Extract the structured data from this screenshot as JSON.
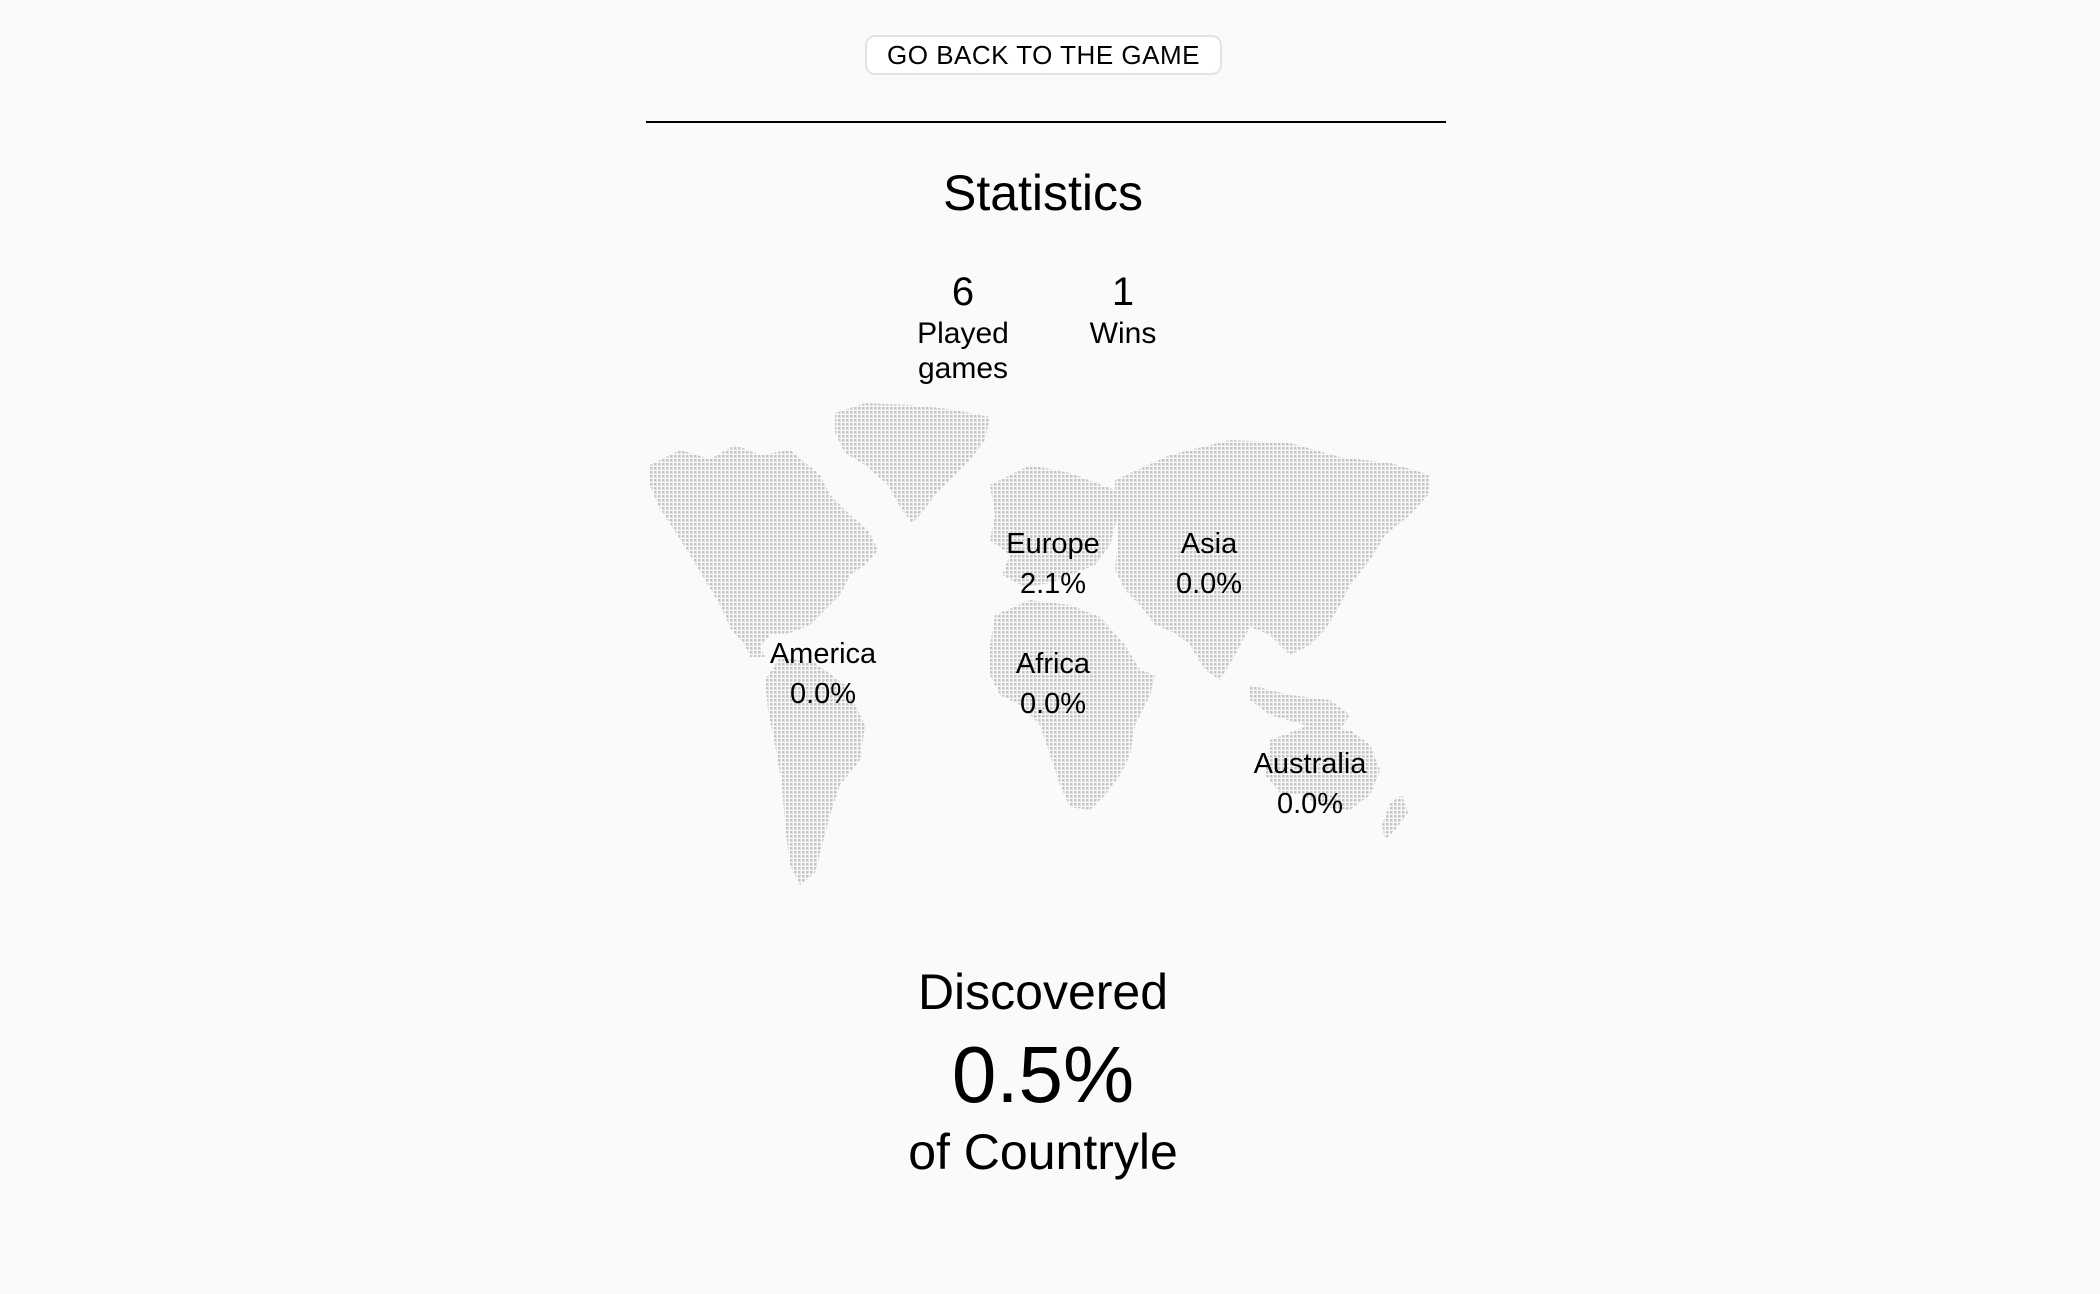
{
  "back_button": {
    "label": "GO BACK TO THE GAME"
  },
  "statistics": {
    "title": "Statistics",
    "played": {
      "value": "6",
      "label_line1": "Played",
      "label_line2": "games"
    },
    "wins": {
      "value": "1",
      "label": "Wins"
    }
  },
  "regions": [
    {
      "name": "Europe",
      "pct": "2.1%"
    },
    {
      "name": "Asia",
      "pct": "0.0%"
    },
    {
      "name": "America",
      "pct": "0.0%"
    },
    {
      "name": "Africa",
      "pct": "0.0%"
    },
    {
      "name": "Australia",
      "pct": "0.0%"
    }
  ],
  "discovered": {
    "title": "Discovered",
    "percent": "0.5%",
    "suffix": "of Countryle"
  },
  "colors": {
    "background": "#fafafa",
    "map_dots": "#c8c8c8",
    "text": "#000000"
  }
}
